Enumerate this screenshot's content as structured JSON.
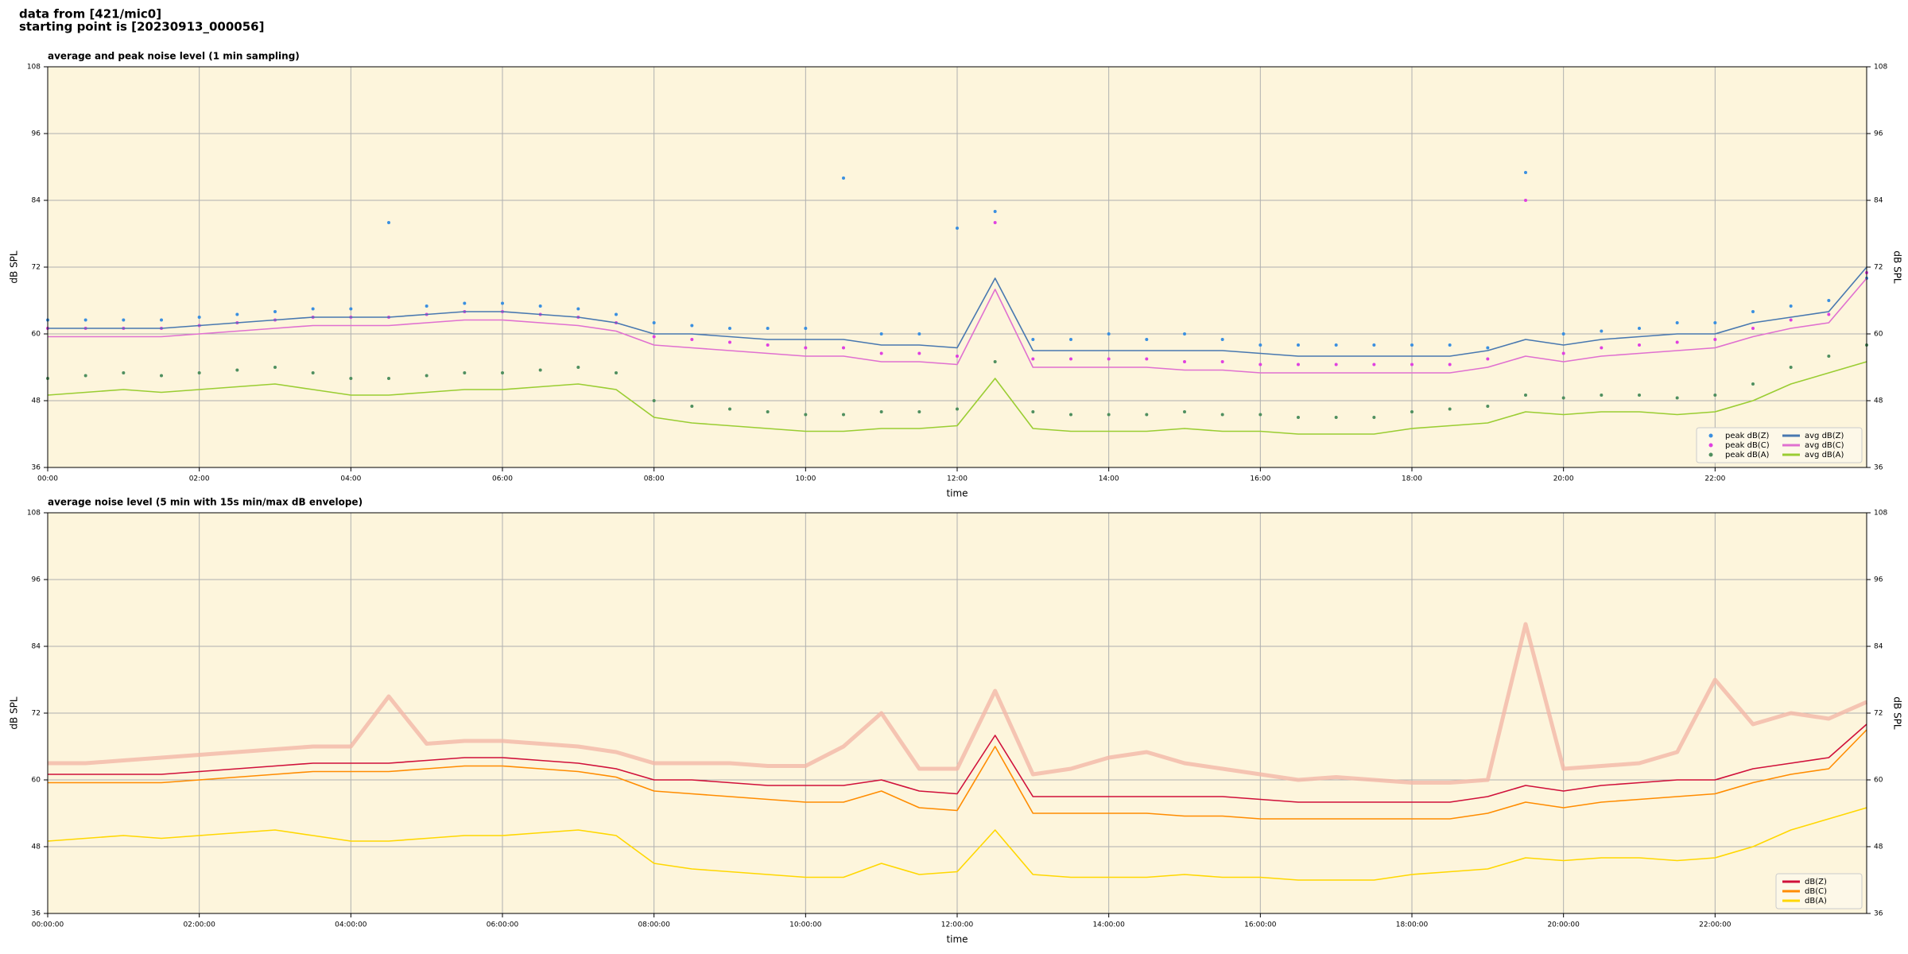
{
  "header": {
    "line1": "data from [421/mic0]",
    "line2": "starting point is [20230913_000056]"
  },
  "chart_data": [
    {
      "type": "line",
      "title": "average and peak noise level (1 min sampling)",
      "xlabel": "time",
      "ylabel": "dB SPL",
      "xlim": [
        0,
        24
      ],
      "ylim": [
        36,
        108
      ],
      "yticks": [
        36,
        48,
        60,
        72,
        84,
        96,
        108
      ],
      "xticks": [
        {
          "value": 0,
          "label": "00:00"
        },
        {
          "value": 2,
          "label": "02:00"
        },
        {
          "value": 4,
          "label": "04:00"
        },
        {
          "value": 6,
          "label": "06:00"
        },
        {
          "value": 8,
          "label": "08:00"
        },
        {
          "value": 10,
          "label": "10:00"
        },
        {
          "value": 12,
          "label": "12:00"
        },
        {
          "value": 14,
          "label": "14:00"
        },
        {
          "value": 16,
          "label": "16:00"
        },
        {
          "value": 18,
          "label": "18:00"
        },
        {
          "value": 20,
          "label": "20:00"
        },
        {
          "value": 22,
          "label": "22:00"
        }
      ],
      "grid": true,
      "background": "#fdf5dc",
      "legend": "lower right",
      "legend_columns": 2,
      "x": [
        0,
        0.5,
        1,
        1.5,
        2,
        2.5,
        3,
        3.5,
        4,
        4.5,
        5,
        5.5,
        6,
        6.5,
        7,
        7.5,
        8,
        8.5,
        9,
        9.5,
        10,
        10.5,
        11,
        11.5,
        12,
        12.5,
        13,
        13.5,
        14,
        14.5,
        15,
        15.5,
        16,
        16.5,
        17,
        17.5,
        18,
        18.5,
        19,
        19.5,
        20,
        20.5,
        21,
        21.5,
        22,
        22.5,
        23,
        23.5,
        24
      ],
      "series": [
        {
          "name": "peak dB(Z)",
          "style": "points",
          "color": "#3a8fe0",
          "values": [
            62.5,
            62.5,
            62.5,
            62.5,
            63,
            63.5,
            64,
            64.5,
            64.5,
            80,
            65,
            65.5,
            65.5,
            65,
            64.5,
            63.5,
            62,
            61.5,
            61,
            61,
            61,
            88,
            60,
            60,
            79,
            82,
            59,
            59,
            60,
            59,
            60,
            59,
            58,
            58,
            58,
            58,
            58,
            58,
            57.5,
            89,
            60,
            60.5,
            61,
            62,
            62,
            64,
            65,
            66,
            70
          ]
        },
        {
          "name": "peak dB(C)",
          "style": "points",
          "color": "#e040e0",
          "values": [
            61,
            61,
            61,
            61,
            61.5,
            62,
            62.5,
            63,
            63,
            63,
            63.5,
            64,
            64,
            63.5,
            63,
            62,
            59.5,
            59,
            58.5,
            58,
            57.5,
            57.5,
            56.5,
            56.5,
            56,
            80,
            55.5,
            55.5,
            55.5,
            55.5,
            55,
            55,
            54.5,
            54.5,
            54.5,
            54.5,
            54.5,
            54.5,
            55.5,
            84,
            56.5,
            57.5,
            58,
            58.5,
            59,
            61,
            62.5,
            63.5,
            71
          ]
        },
        {
          "name": "peak dB(A)",
          "style": "points",
          "color": "#4f8f5f",
          "values": [
            52,
            52.5,
            53,
            52.5,
            53,
            53.5,
            54,
            53,
            52,
            52,
            52.5,
            53,
            53,
            53.5,
            54,
            53,
            48,
            47,
            46.5,
            46,
            45.5,
            45.5,
            46,
            46,
            46.5,
            55,
            46,
            45.5,
            45.5,
            45.5,
            46,
            45.5,
            45.5,
            45,
            45,
            45,
            46,
            46.5,
            47,
            49,
            48.5,
            49,
            49,
            48.5,
            49,
            51,
            54,
            56,
            58
          ]
        },
        {
          "name": "avg dB(Z)",
          "style": "line",
          "color": "#4878b0",
          "values": [
            61,
            61,
            61,
            61,
            61.5,
            62,
            62.5,
            63,
            63,
            63,
            63.5,
            64,
            64,
            63.5,
            63,
            62,
            60,
            60,
            59.5,
            59,
            59,
            59,
            58,
            58,
            57.5,
            70,
            57,
            57,
            57,
            57,
            57,
            57,
            56.5,
            56,
            56,
            56,
            56,
            56,
            57,
            59,
            58,
            59,
            59.5,
            60,
            60,
            62,
            63,
            64,
            72
          ]
        },
        {
          "name": "avg dB(C)",
          "style": "line",
          "color": "#e070d0",
          "values": [
            59.5,
            59.5,
            59.5,
            59.5,
            60,
            60.5,
            61,
            61.5,
            61.5,
            61.5,
            62,
            62.5,
            62.5,
            62,
            61.5,
            60.5,
            58,
            57.5,
            57,
            56.5,
            56,
            56,
            55,
            55,
            54.5,
            68,
            54,
            54,
            54,
            54,
            53.5,
            53.5,
            53,
            53,
            53,
            53,
            53,
            53,
            54,
            56,
            55,
            56,
            56.5,
            57,
            57.5,
            59.5,
            61,
            62,
            70
          ]
        },
        {
          "name": "avg dB(A)",
          "style": "line",
          "color": "#9acd32",
          "values": [
            49,
            49.5,
            50,
            49.5,
            50,
            50.5,
            51,
            50,
            49,
            49,
            49.5,
            50,
            50,
            50.5,
            51,
            50,
            45,
            44,
            43.5,
            43,
            42.5,
            42.5,
            43,
            43,
            43.5,
            52,
            43,
            42.5,
            42.5,
            42.5,
            43,
            42.5,
            42.5,
            42,
            42,
            42,
            43,
            43.5,
            44,
            46,
            45.5,
            46,
            46,
            45.5,
            46,
            48,
            51,
            53,
            55
          ]
        }
      ]
    },
    {
      "type": "line",
      "title": "average noise level (5 min with 15s min/max dB envelope)",
      "xlabel": "time",
      "ylabel": "dB SPL",
      "xlim": [
        0,
        24
      ],
      "ylim": [
        36,
        108
      ],
      "yticks": [
        36,
        48,
        60,
        72,
        84,
        96,
        108
      ],
      "xticks": [
        {
          "value": 0,
          "label": "00:00:00"
        },
        {
          "value": 2,
          "label": "02:00:00"
        },
        {
          "value": 4,
          "label": "04:00:00"
        },
        {
          "value": 6,
          "label": "06:00:00"
        },
        {
          "value": 8,
          "label": "08:00:00"
        },
        {
          "value": 10,
          "label": "10:00:00"
        },
        {
          "value": 12,
          "label": "12:00:00"
        },
        {
          "value": 14,
          "label": "14:00:00"
        },
        {
          "value": 16,
          "label": "16:00:00"
        },
        {
          "value": 18,
          "label": "18:00:00"
        },
        {
          "value": 20,
          "label": "20:00:00"
        },
        {
          "value": 22,
          "label": "22:00:00"
        }
      ],
      "grid": true,
      "background": "#fdf5dc",
      "legend": "lower right",
      "legend_columns": 1,
      "x": [
        0,
        0.5,
        1,
        1.5,
        2,
        2.5,
        3,
        3.5,
        4,
        4.5,
        5,
        5.5,
        6,
        6.5,
        7,
        7.5,
        8,
        8.5,
        9,
        9.5,
        10,
        10.5,
        11,
        11.5,
        12,
        12.5,
        13,
        13.5,
        14,
        14.5,
        15,
        15.5,
        16,
        16.5,
        17,
        17.5,
        18,
        18.5,
        19,
        19.5,
        20,
        20.5,
        21,
        21.5,
        22,
        22.5,
        23,
        23.5,
        24
      ],
      "envelope": {
        "color": "#f2b8a8",
        "values": [
          63,
          63,
          63.5,
          64,
          64.5,
          65,
          65.5,
          66,
          66,
          75,
          66.5,
          67,
          67,
          66.5,
          66,
          65,
          63,
          63,
          63,
          62.5,
          62.5,
          66,
          72,
          62,
          62,
          76,
          61,
          62,
          64,
          65,
          63,
          62,
          61,
          60,
          60.5,
          60,
          59.5,
          59.5,
          60,
          88,
          62,
          62.5,
          63,
          65,
          78,
          70,
          72,
          71,
          74
        ]
      },
      "series": [
        {
          "name": "dB(Z)",
          "style": "line",
          "color": "#d0103a",
          "values": [
            61,
            61,
            61,
            61,
            61.5,
            62,
            62.5,
            63,
            63,
            63,
            63.5,
            64,
            64,
            63.5,
            63,
            62,
            60,
            60,
            59.5,
            59,
            59,
            59,
            60,
            58,
            57.5,
            68,
            57,
            57,
            57,
            57,
            57,
            57,
            56.5,
            56,
            56,
            56,
            56,
            56,
            57,
            59,
            58,
            59,
            59.5,
            60,
            60,
            62,
            63,
            64,
            70
          ]
        },
        {
          "name": "dB(C)",
          "style": "line",
          "color": "#ff8c00",
          "values": [
            59.5,
            59.5,
            59.5,
            59.5,
            60,
            60.5,
            61,
            61.5,
            61.5,
            61.5,
            62,
            62.5,
            62.5,
            62,
            61.5,
            60.5,
            58,
            57.5,
            57,
            56.5,
            56,
            56,
            58,
            55,
            54.5,
            66,
            54,
            54,
            54,
            54,
            53.5,
            53.5,
            53,
            53,
            53,
            53,
            53,
            53,
            54,
            56,
            55,
            56,
            56.5,
            57,
            57.5,
            59.5,
            61,
            62,
            69
          ]
        },
        {
          "name": "dB(A)",
          "style": "line",
          "color": "#ffd700",
          "values": [
            49,
            49.5,
            50,
            49.5,
            50,
            50.5,
            51,
            50,
            49,
            49,
            49.5,
            50,
            50,
            50.5,
            51,
            50,
            45,
            44,
            43.5,
            43,
            42.5,
            42.5,
            45,
            43,
            43.5,
            51,
            43,
            42.5,
            42.5,
            42.5,
            43,
            42.5,
            42.5,
            42,
            42,
            42,
            43,
            43.5,
            44,
            46,
            45.5,
            46,
            46,
            45.5,
            46,
            48,
            51,
            53,
            55
          ]
        }
      ]
    }
  ]
}
